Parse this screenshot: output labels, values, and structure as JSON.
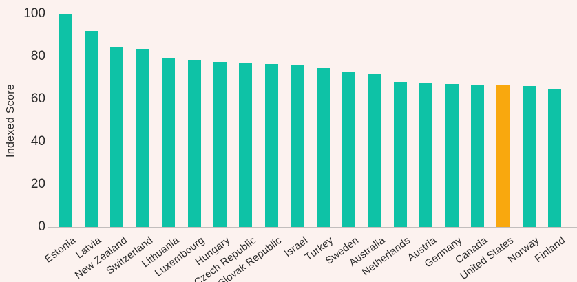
{
  "chart_data": {
    "type": "bar",
    "ylabel": "Indexed Score",
    "categories": [
      "Estonia",
      "Latvia",
      "New Zealand",
      "Switzerland",
      "Lithuania",
      "Luxembourg",
      "Hungary",
      "Czech Republic",
      "Slovak Republic",
      "Israel",
      "Turkey",
      "Sweden",
      "Australia",
      "Netherlands",
      "Austria",
      "Germany",
      "Canada",
      "United States",
      "Norway",
      "Finland"
    ],
    "values": [
      100,
      92,
      84.5,
      83.5,
      79,
      78.5,
      77.5,
      77,
      76.5,
      76,
      74.5,
      73,
      72,
      68,
      67.5,
      67,
      66.7,
      66.4,
      66,
      65
    ],
    "highlighted_category": "United States",
    "yticks": [
      0,
      20,
      40,
      60,
      80,
      100
    ],
    "ylim": [
      0,
      100
    ],
    "grid": false,
    "legend": null,
    "colors": {
      "bar": "#0ec2a6",
      "highlight_bar": "#f9a80e",
      "background": "#fcf2ef",
      "axis_line": "#c2bebd",
      "text": "#2a2a2a"
    }
  }
}
